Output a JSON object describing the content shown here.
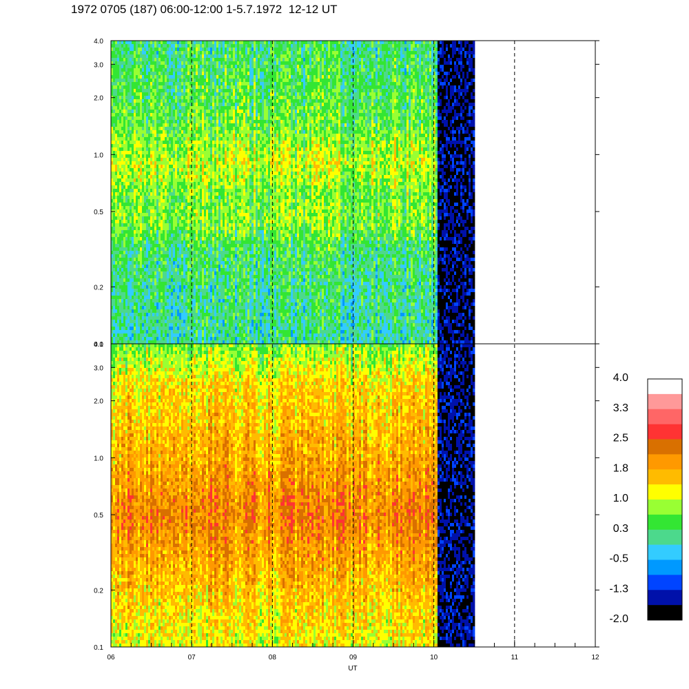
{
  "title": "1972 0705 (187) 06:00-12:00 1-5.7.1972  12-12 UT",
  "chart_data": {
    "type": "heatmap",
    "xlabel": "UT",
    "x_ticks": [
      "06",
      "07",
      "08",
      "09",
      "10",
      "11",
      "12"
    ],
    "xlim": [
      6,
      12
    ],
    "data_end_hour": 10.5,
    "low_level_start_hour": 10.03,
    "y_scale": "log",
    "ylim": [
      0.1,
      4.0
    ],
    "y_ticks": [
      "0.1",
      "0.2",
      "0.5",
      "1.0",
      "2.0",
      "3.0",
      "4.0"
    ],
    "y_tick_values": [
      0.1,
      0.2,
      0.5,
      1.0,
      2.0,
      3.0,
      4.0
    ],
    "dashed_hour_lines": [
      7,
      8,
      9,
      10,
      11
    ],
    "panels": [
      {
        "name": "upper",
        "level_profile": [
          {
            "y": 0.1,
            "level": 0.0
          },
          {
            "y": 0.3,
            "level": 0.2
          },
          {
            "y": 0.45,
            "level": 0.7
          },
          {
            "y": 0.6,
            "level": 0.6
          },
          {
            "y": 0.9,
            "level": 1.0
          },
          {
            "y": 1.5,
            "level": 0.5
          },
          {
            "y": 4.0,
            "level": 0.2
          }
        ],
        "post_end_level": -1.6
      },
      {
        "name": "lower",
        "level_profile": [
          {
            "y": 0.1,
            "level": 1.1
          },
          {
            "y": 0.2,
            "level": 1.5
          },
          {
            "y": 0.5,
            "level": 2.1
          },
          {
            "y": 1.0,
            "level": 1.7
          },
          {
            "y": 2.5,
            "level": 1.3
          },
          {
            "y": 4.0,
            "level": 0.6
          }
        ],
        "post_end_level": -1.6
      }
    ],
    "colorbar": {
      "labels": [
        "4.0",
        "3.3",
        "2.5",
        "1.8",
        "1.0",
        "0.3",
        "-0.5",
        "-1.3",
        "-2.0"
      ],
      "colors_top_to_bottom": [
        "#ffffff",
        "#ff9999",
        "#ff6666",
        "#ff3333",
        "#d97000",
        "#ff9900",
        "#ffbb00",
        "#ffff00",
        "#99ff33",
        "#33e633",
        "#4cd98c",
        "#33ccff",
        "#0099ff",
        "#0044ff",
        "#0011aa",
        "#000000"
      ]
    }
  }
}
